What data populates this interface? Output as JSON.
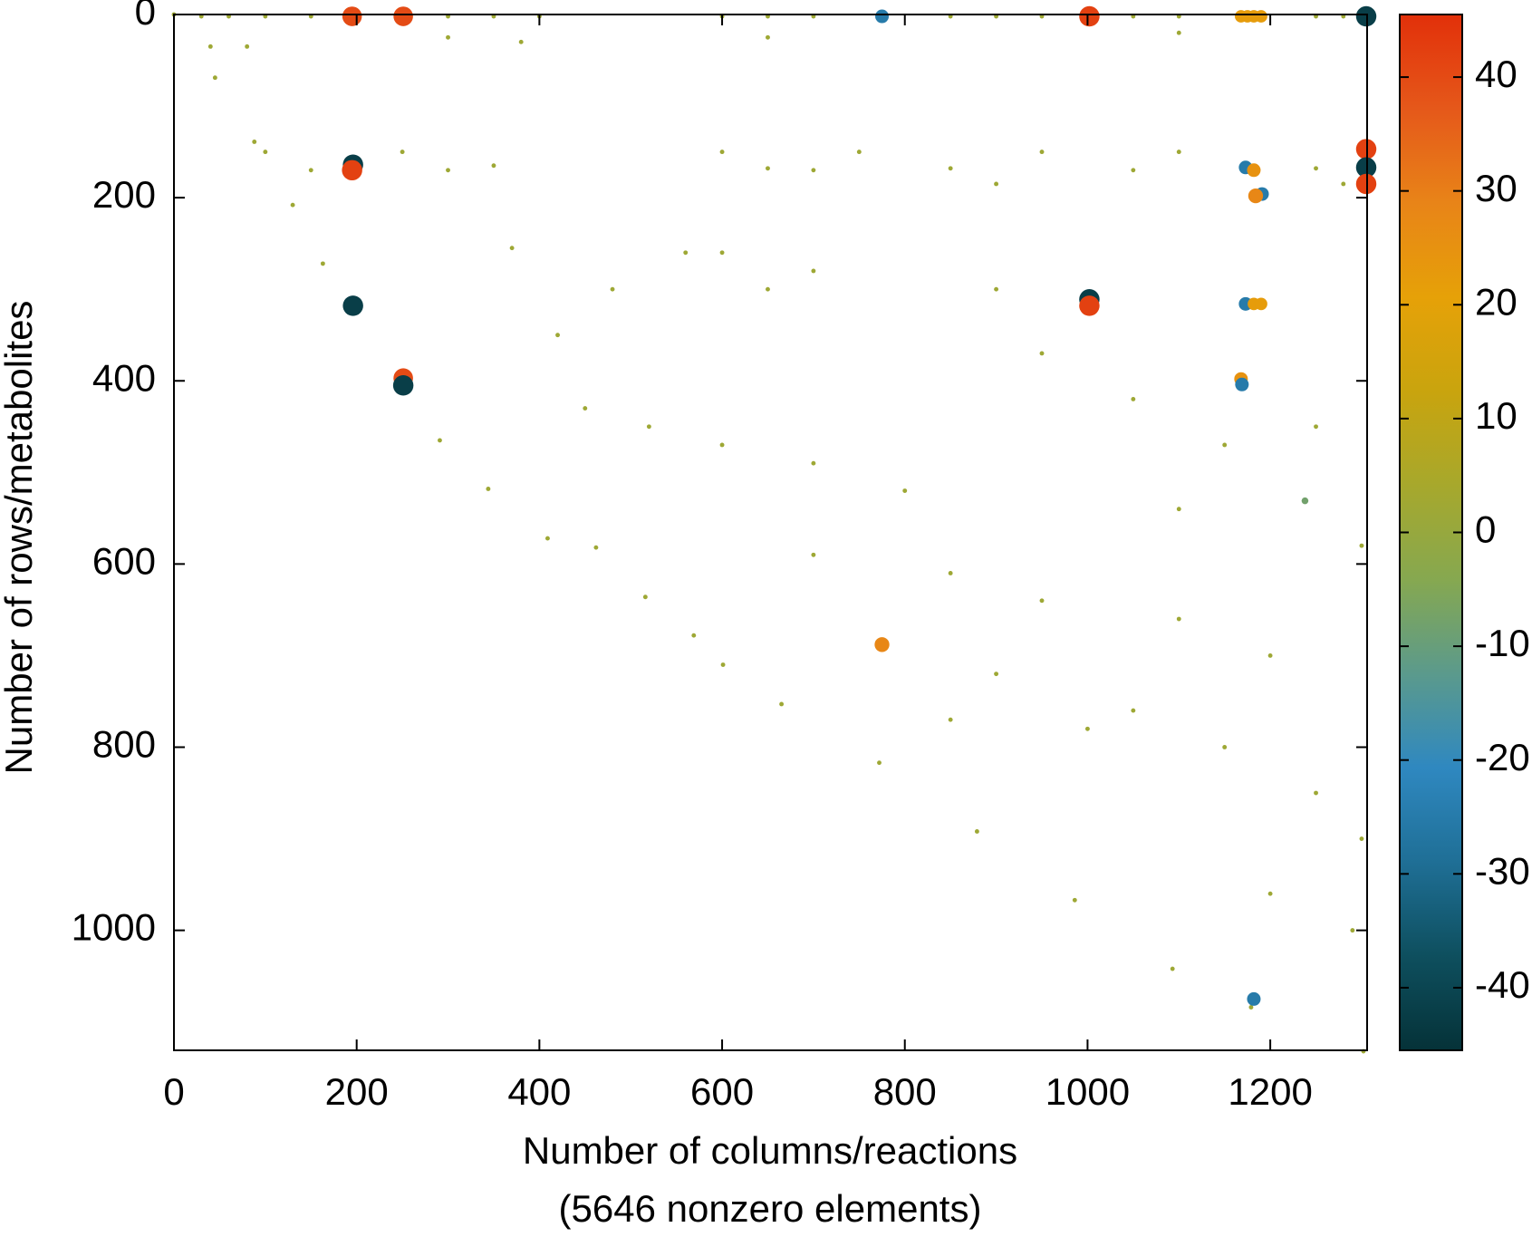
{
  "chart_data": {
    "type": "scatter",
    "xlabel": "Number of columns/reactions",
    "subtitle": "(5646 nonzero elements)",
    "ylabel": "Number of rows/metabolites",
    "xlim": [
      0,
      1306
    ],
    "ylim": [
      1131,
      0
    ],
    "xticks": [
      0,
      200,
      400,
      600,
      800,
      1000,
      1200
    ],
    "yticks": [
      0,
      200,
      400,
      600,
      800,
      1000
    ],
    "clim": [
      -45.5,
      45.5
    ],
    "cticks": [
      -40,
      -30,
      -20,
      -10,
      0,
      10,
      20,
      30,
      40
    ],
    "colormap": [
      "#053238",
      "#0e4f5e",
      "#1f6f96",
      "#2f88c0",
      "#5b9a8c",
      "#86a850",
      "#a7a82c",
      "#c9a40e",
      "#e6a108",
      "#e88418",
      "#e5581a",
      "#e2300a"
    ],
    "x": [
      0,
      45,
      88,
      130,
      163,
      196,
      251,
      291,
      344,
      409,
      462,
      516,
      569,
      601,
      665,
      772,
      879,
      986,
      1093,
      1179,
      1302,
      30,
      60,
      100,
      150,
      300,
      350,
      400,
      600,
      650,
      700,
      850,
      900,
      950,
      1050,
      1100,
      1250,
      1280,
      40,
      80,
      300,
      380,
      650,
      1100,
      100,
      150,
      250,
      300,
      350,
      600,
      650,
      700,
      750,
      850,
      900,
      950,
      1050,
      1100,
      1250,
      1280,
      370,
      420,
      450,
      600,
      650,
      700,
      900,
      950,
      1050,
      1150,
      1250,
      600,
      700,
      800,
      850,
      950,
      1100,
      1200,
      900,
      1050,
      1150,
      1250,
      1000,
      850,
      700,
      1200,
      1290,
      1300,
      1300,
      1100,
      520,
      560,
      480,
      1238,
      195,
      251,
      775,
      1002,
      1168,
      1175,
      1182,
      1190,
      1305,
      196,
      195,
      196,
      251,
      251,
      1002,
      1002,
      1305,
      1305,
      1305,
      1173,
      1182,
      1191,
      1184,
      1173,
      1182,
      1190,
      1168,
      1169,
      775,
      1182
    ],
    "y": [
      0,
      69,
      139,
      208,
      272,
      324,
      411,
      465,
      518,
      572,
      582,
      636,
      678,
      710,
      753,
      817,
      892,
      967,
      1042,
      1084,
      1132,
      2,
      2,
      2,
      2,
      2,
      2,
      2,
      2,
      2,
      2,
      2,
      2,
      2,
      2,
      2,
      2,
      2,
      35,
      35,
      25,
      30,
      25,
      20,
      150,
      170,
      150,
      170,
      165,
      150,
      168,
      170,
      150,
      168,
      185,
      150,
      170,
      150,
      168,
      185,
      255,
      350,
      430,
      260,
      300,
      280,
      300,
      370,
      420,
      470,
      450,
      470,
      490,
      520,
      610,
      640,
      660,
      700,
      720,
      760,
      800,
      850,
      780,
      770,
      590,
      960,
      1000,
      580,
      900,
      540,
      450,
      260,
      300,
      531,
      2,
      2,
      2,
      2,
      2,
      2,
      2,
      2,
      2,
      164,
      170,
      318,
      397,
      405,
      311,
      318,
      147,
      167,
      185,
      167,
      170,
      196,
      198,
      316,
      316,
      316,
      398,
      404,
      688,
      1075
    ],
    "values": [
      2,
      2,
      2,
      2,
      2,
      2,
      2,
      2,
      2,
      2,
      2,
      2,
      2,
      2,
      2,
      2,
      2,
      2,
      2,
      2,
      2,
      2,
      2,
      2,
      2,
      2,
      2,
      2,
      2,
      2,
      2,
      2,
      2,
      2,
      2,
      2,
      2,
      2,
      2,
      2,
      2,
      2,
      2,
      2,
      2,
      2,
      2,
      2,
      2,
      2,
      2,
      2,
      2,
      2,
      2,
      2,
      2,
      2,
      2,
      2,
      2,
      2,
      2,
      2,
      2,
      2,
      2,
      2,
      2,
      2,
      2,
      2,
      2,
      2,
      2,
      2,
      2,
      2,
      2,
      2,
      2,
      2,
      2,
      2,
      2,
      2,
      2,
      2,
      2,
      2,
      2,
      2,
      2,
      -8,
      40,
      40,
      -25,
      42,
      22,
      22,
      22,
      22,
      -42,
      -42,
      42,
      -42,
      40,
      -42,
      -42,
      42,
      42,
      -42,
      42,
      -25,
      25,
      -25,
      28,
      -25,
      22,
      22,
      25,
      -25,
      28,
      -25
    ]
  }
}
